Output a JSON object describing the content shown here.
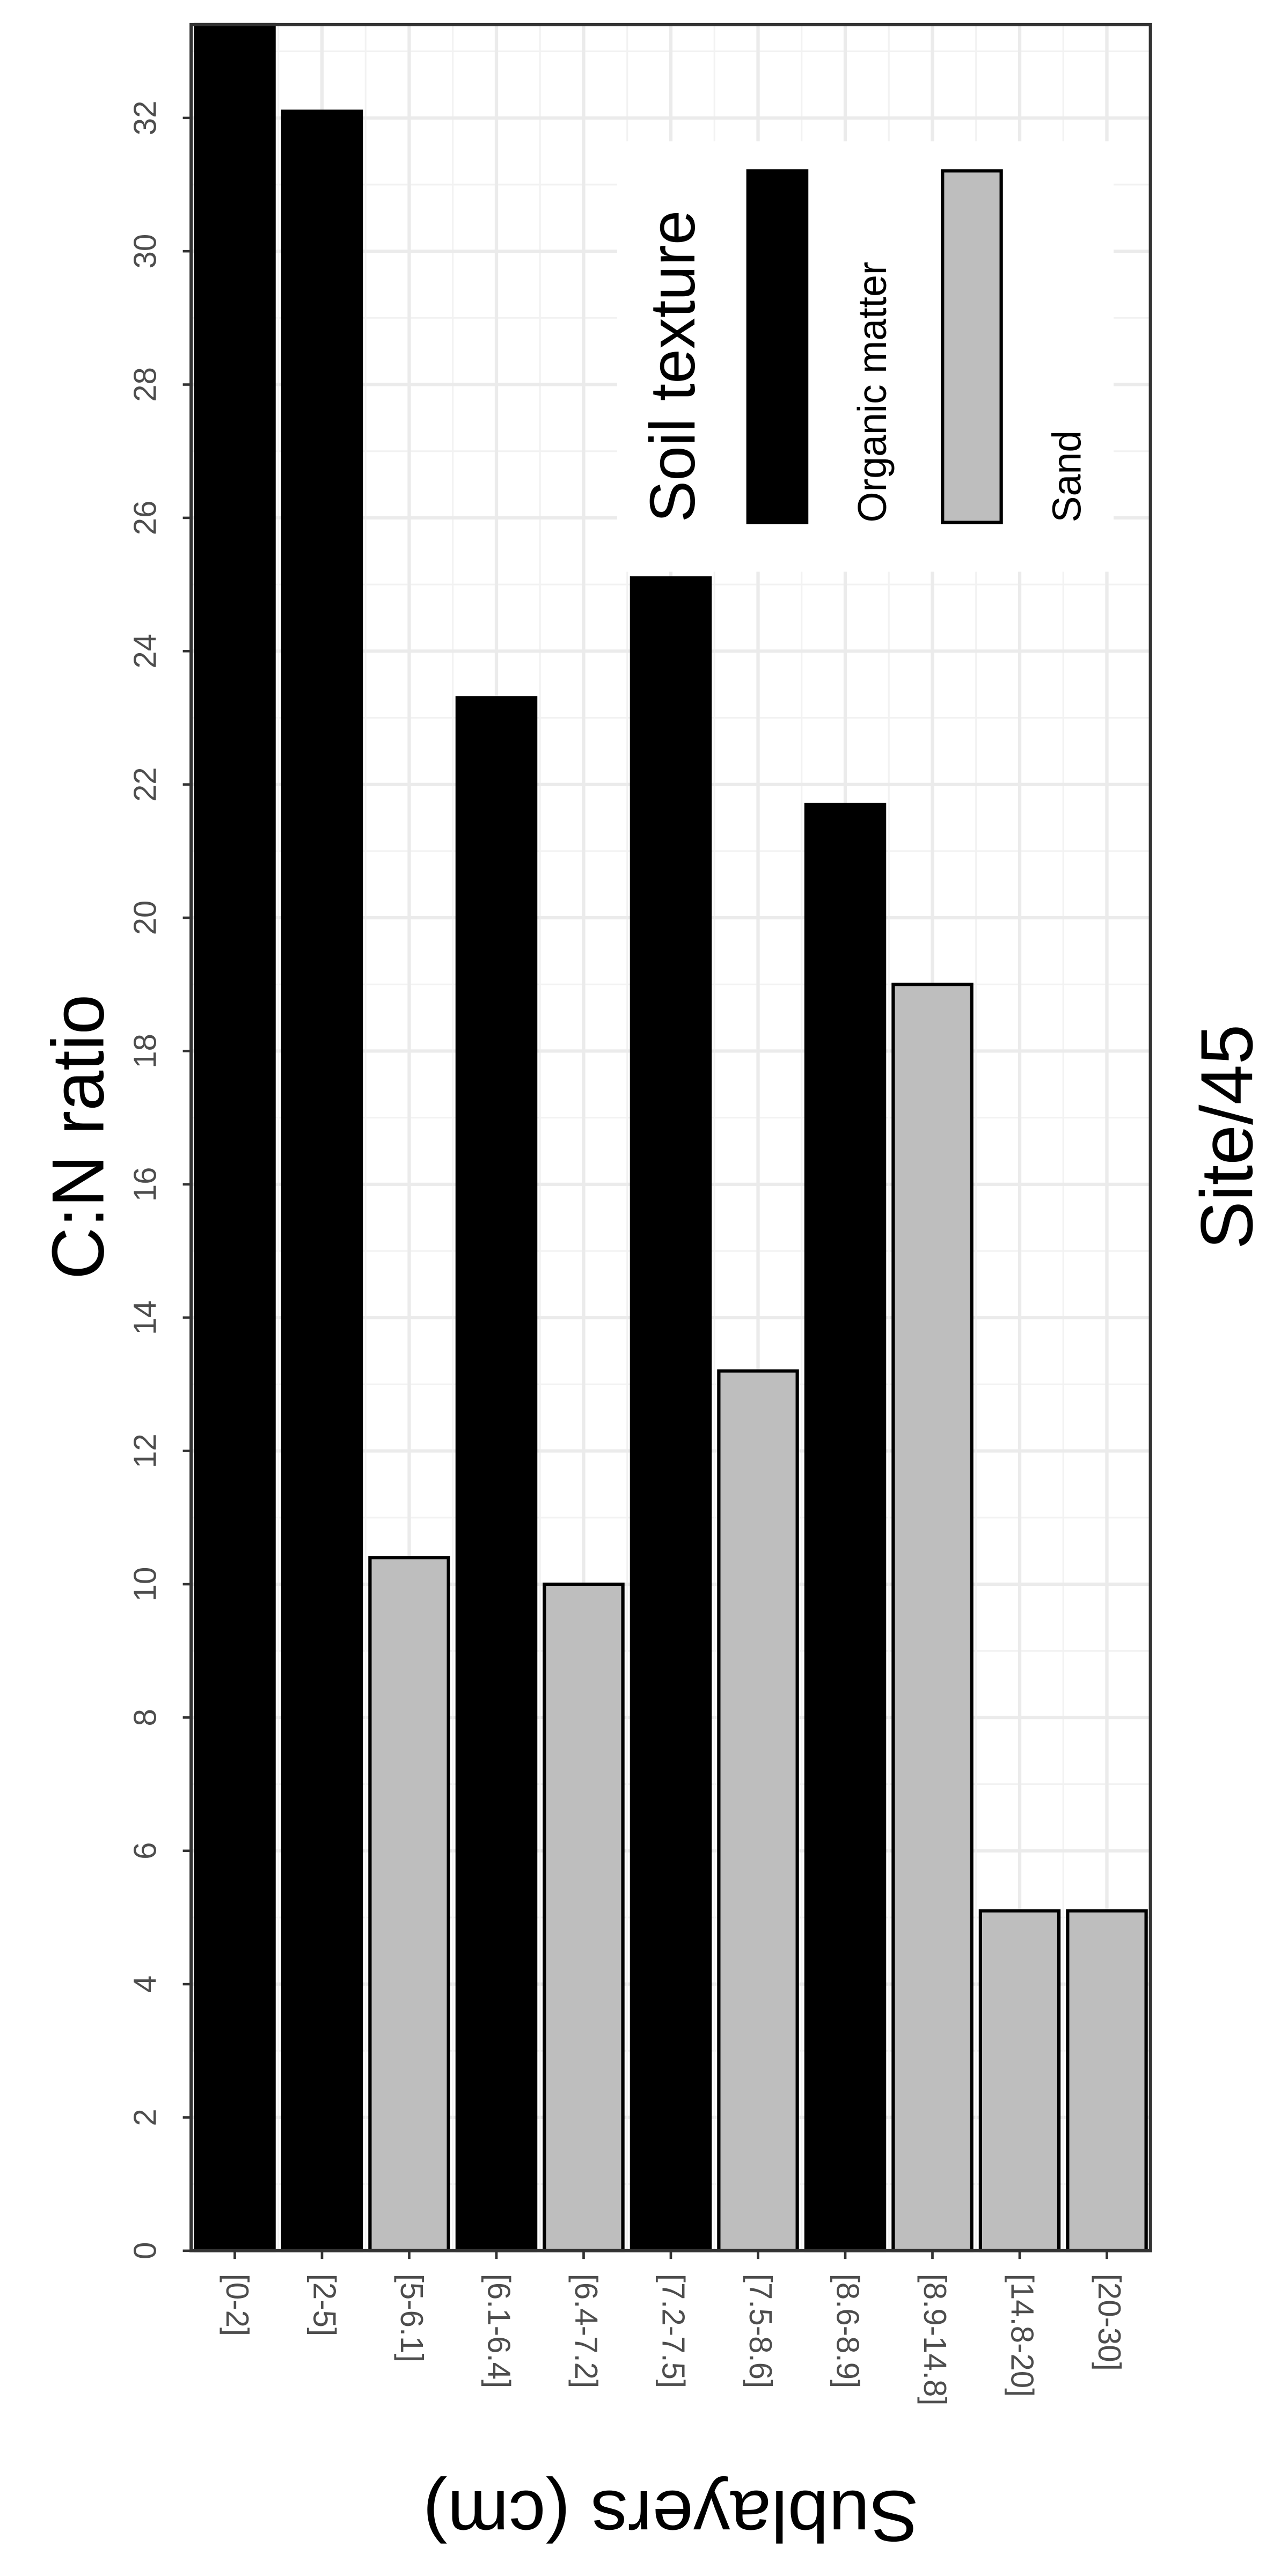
{
  "chart_data": {
    "type": "bar",
    "title": "C:N ratio",
    "x_label": "Sublayers (cm)",
    "annotation": "Site/45",
    "legend_title": "Soil texture",
    "categories": [
      "[0-2]",
      "[2-5]",
      "[5-6.1]",
      "[6.1-6.4]",
      "[6.4-7.2]",
      "[7.2-7.5]",
      "[7.5-8.6]",
      "[8.6-8.9]",
      "[8.9-14.8]",
      "[14.8-20]",
      "[20-30]"
    ],
    "series": [
      {
        "name": "Organic matter",
        "color": "#000000",
        "values": [
          33.4,
          32.1,
          null,
          23.3,
          null,
          25.1,
          null,
          21.7,
          null,
          null,
          null
        ]
      },
      {
        "name": "Sand",
        "color": "#bebebe",
        "values": [
          null,
          null,
          10.4,
          null,
          10.0,
          null,
          13.2,
          null,
          19.0,
          5.1,
          5.1
        ]
      }
    ],
    "ylim": [
      0,
      33.4
    ],
    "yticks": [
      0,
      2,
      4,
      6,
      8,
      10,
      12,
      14,
      16,
      18,
      20,
      22,
      24,
      26,
      28,
      30,
      32
    ],
    "grid": true
  }
}
